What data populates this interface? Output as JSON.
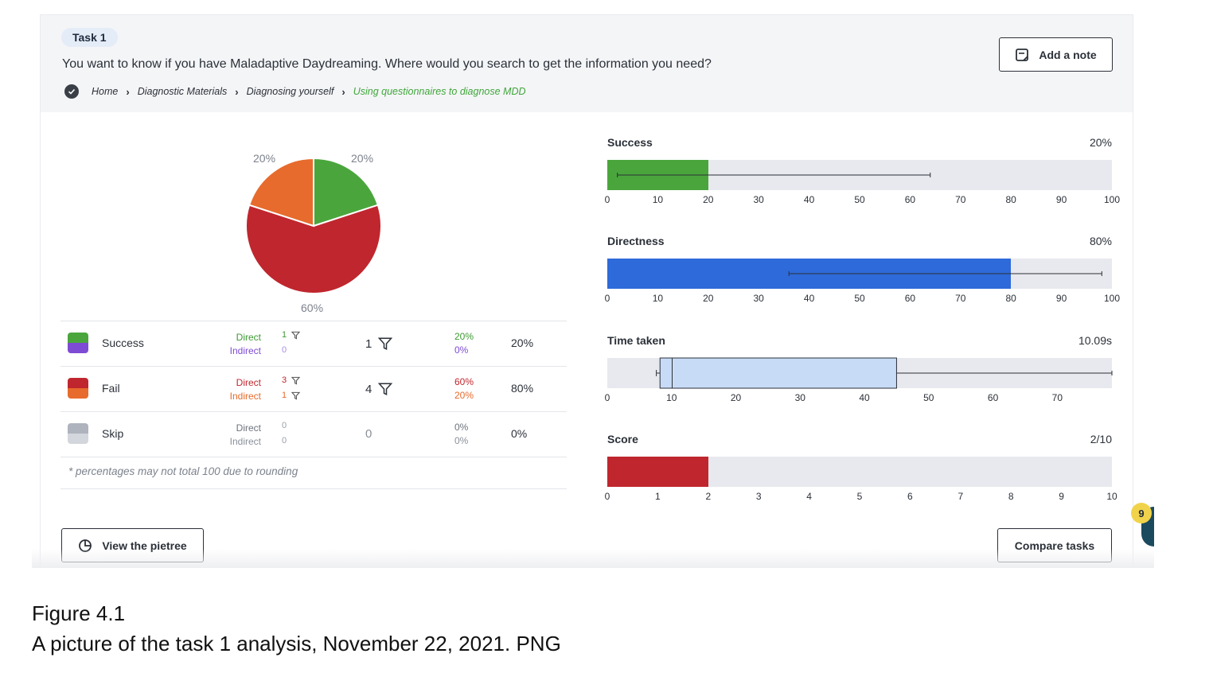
{
  "task": {
    "pill": "Task 1",
    "question": "You want to know if you have Maladaptive Daydreaming. Where would you search to get the information you need?",
    "breadcrumb": [
      "Home",
      "Diagnostic Materials",
      "Diagnosing yourself",
      "Using questionnaires to diagnose MDD"
    ],
    "add_note_label": "Add a note"
  },
  "colors": {
    "success_direct": "#4aa63c",
    "success_indirect": "#7e4bd4",
    "fail_direct": "#c0262e",
    "fail_indirect": "#e76b2c",
    "skip_direct": "#aeb3bd",
    "skip_indirect": "#d3d6dc",
    "directness": "#2e6ad9",
    "time_box": "#c8dbf6"
  },
  "pie": {
    "slices": [
      {
        "name": "Success",
        "value": 20,
        "label": "20%",
        "color": "#4aa63c"
      },
      {
        "name": "Fail",
        "value": 60,
        "label": "60%",
        "color": "#c0262e"
      },
      {
        "name": "Fail indirect",
        "value": 20,
        "label": "20%",
        "color": "#e76b2c"
      }
    ]
  },
  "table": {
    "rows": [
      {
        "name": "Success",
        "direct_label": "Direct",
        "indirect_label": "Indirect",
        "direct_count": "1",
        "indirect_count": "0",
        "total": "1",
        "direct_pct": "20%",
        "indirect_pct": "0%",
        "total_pct": "20%"
      },
      {
        "name": "Fail",
        "direct_label": "Direct",
        "indirect_label": "Indirect",
        "direct_count": "3",
        "indirect_count": "1",
        "total": "4",
        "direct_pct": "60%",
        "indirect_pct": "20%",
        "total_pct": "80%"
      },
      {
        "name": "Skip",
        "direct_label": "Direct",
        "indirect_label": "Indirect",
        "direct_count": "0",
        "indirect_count": "0",
        "total": "0",
        "direct_pct": "0%",
        "indirect_pct": "0%",
        "total_pct": "0%"
      }
    ],
    "footnote": "* percentages may not total 100 due to rounding"
  },
  "chart_data": [
    {
      "type": "bar",
      "title": "Success",
      "value_label": "20%",
      "value": 20,
      "xlim": [
        0,
        100
      ],
      "ticks": [
        "0",
        "10",
        "20",
        "30",
        "40",
        "50",
        "60",
        "70",
        "80",
        "90",
        "100"
      ],
      "error_bar": [
        2,
        64
      ]
    },
    {
      "type": "bar",
      "title": "Directness",
      "value_label": "80%",
      "value": 80,
      "xlim": [
        0,
        100
      ],
      "ticks": [
        "0",
        "10",
        "20",
        "30",
        "40",
        "50",
        "60",
        "70",
        "80",
        "90",
        "100"
      ],
      "error_bar": [
        36,
        98
      ]
    },
    {
      "type": "box",
      "title": "Time taken",
      "value_label": "10.09s",
      "xlim": [
        0,
        78.5
      ],
      "ticks": [
        "0",
        "10",
        "20",
        "30",
        "40",
        "50",
        "60",
        "70"
      ],
      "whisker_low": 8,
      "q1": 8.2,
      "median": 10.09,
      "q3": 45,
      "whisker_high": 78.5
    },
    {
      "type": "bar",
      "title": "Score",
      "value_label": "2/10",
      "value": 2,
      "xlim": [
        0,
        10
      ],
      "ticks": [
        "0",
        "1",
        "2",
        "3",
        "4",
        "5",
        "6",
        "7",
        "8",
        "9",
        "10"
      ]
    }
  ],
  "buttons": {
    "view_pietree": "View the pietree",
    "compare_tasks": "Compare tasks"
  },
  "notification_count": "9",
  "figure": {
    "number": "Figure 4.1",
    "caption": "A picture of the task 1 analysis, November 22, 2021. PNG"
  }
}
